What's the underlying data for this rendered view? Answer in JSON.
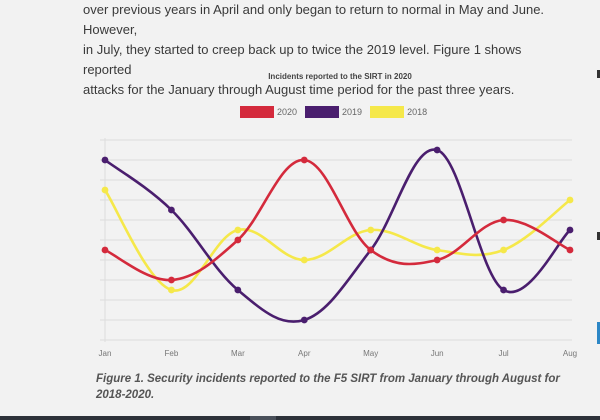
{
  "article": {
    "lines": [
      "over previous years in April and only began to return to normal in May and June. However,",
      "in July, they started to creep back up to twice the 2019 level. Figure 1 shows reported",
      "attacks for the January through August time period for the past three years."
    ]
  },
  "chart_data": {
    "type": "line",
    "title": "Incidents reported to the SIRT in 2020",
    "xlabel": "",
    "ylabel": "",
    "categories": [
      "Jan",
      "Feb",
      "Mar",
      "Apr",
      "May",
      "Jun",
      "Jul",
      "Aug"
    ],
    "ylim": [
      0,
      10
    ],
    "grid": true,
    "legend_position": "top-center",
    "smooth": true,
    "series": [
      {
        "name": "2020",
        "color": "#d42a3c",
        "values": [
          4.5,
          3,
          5,
          9,
          4.5,
          4,
          6,
          4.5
        ]
      },
      {
        "name": "2019",
        "color": "#4a1e6e",
        "values": [
          9,
          6.5,
          2.5,
          1,
          4.5,
          9.5,
          2.5,
          5.5
        ]
      },
      {
        "name": "2018",
        "color": "#f5e84a",
        "values": [
          7.5,
          2.5,
          5.5,
          4,
          5.5,
          4.5,
          4.5,
          7
        ]
      }
    ]
  },
  "caption": "Figure 1. Security incidents reported to the F5 SIRT from January through August for 2018-2020."
}
